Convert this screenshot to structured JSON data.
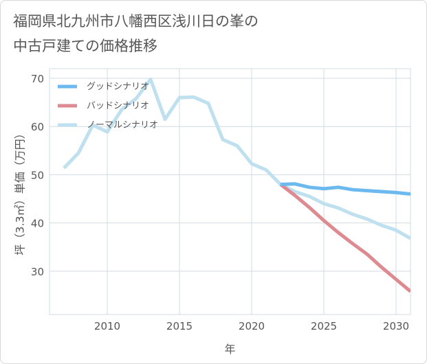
{
  "title_line1": "福岡県北九州市八幡西区浅川日の峯の",
  "title_line2": "中古戸建ての価格推移",
  "chart_data": {
    "type": "line",
    "xlabel": "年",
    "ylabel": "坪（3.3㎡）単価（万円）",
    "xlim": [
      2006,
      2031
    ],
    "ylim": [
      21,
      72
    ],
    "xticks": [
      2010,
      2015,
      2020,
      2025,
      2030
    ],
    "yticks": [
      30,
      40,
      50,
      60,
      70
    ],
    "grid": true,
    "legend_position": "top-left",
    "series": [
      {
        "name": "グッドシナリオ",
        "color": "#6cb9f0",
        "x": [
          2022,
          2023,
          2024,
          2025,
          2026,
          2027,
          2028,
          2029,
          2030,
          2031
        ],
        "values": [
          48.0,
          48.1,
          47.4,
          47.1,
          47.4,
          46.9,
          46.7,
          46.5,
          46.3,
          46.0
        ]
      },
      {
        "name": "バッドシナリオ",
        "color": "#dd8a90",
        "x": [
          2022,
          2023,
          2024,
          2025,
          2026,
          2027,
          2028,
          2029,
          2030,
          2031
        ],
        "values": [
          48.0,
          45.7,
          43.2,
          40.5,
          38.0,
          35.7,
          33.5,
          30.8,
          28.3,
          25.8
        ]
      },
      {
        "name": "ノーマルシナリオ",
        "color": "#bfe0ee",
        "x": [
          2007,
          2008,
          2009,
          2010,
          2011,
          2012,
          2013,
          2014,
          2015,
          2016,
          2017,
          2018,
          2019,
          2020,
          2021,
          2022,
          2023,
          2024,
          2025,
          2026,
          2027,
          2028,
          2029,
          2030,
          2031
        ],
        "values": [
          51.4,
          54.5,
          60.3,
          58.9,
          63.5,
          65.8,
          69.8,
          61.5,
          66.0,
          66.1,
          64.8,
          57.3,
          56.0,
          52.3,
          51.0,
          48.0,
          46.5,
          45.5,
          44.0,
          43.1,
          41.8,
          40.8,
          39.5,
          38.5,
          36.8
        ]
      }
    ]
  }
}
